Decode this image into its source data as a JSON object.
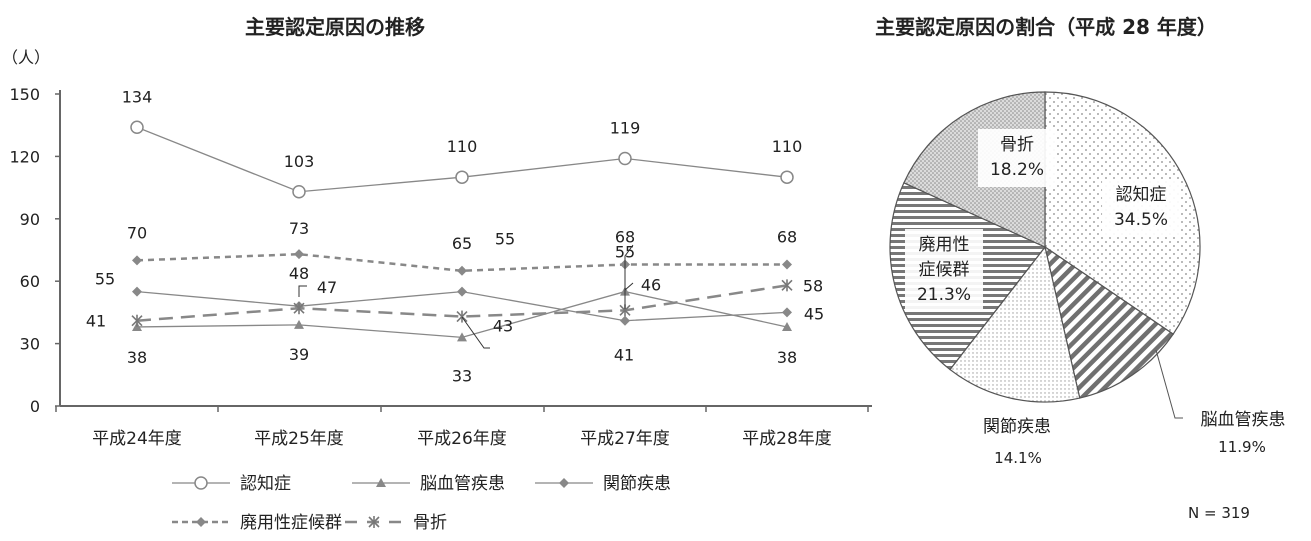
{
  "chart_data": [
    {
      "type": "line",
      "title": "主要認定原因の推移",
      "ylabel": "（人）",
      "ylim": [
        0,
        150
      ],
      "yticks": [
        0,
        30,
        60,
        90,
        120,
        150
      ],
      "categories": [
        "平成24年度",
        "平成25年度",
        "平成26年度",
        "平成27年度",
        "平成28年度"
      ],
      "grid": false,
      "legend": "bottom",
      "series": [
        {
          "name": "認知症",
          "values": [
            134,
            103,
            110,
            119,
            110
          ],
          "color": "#888888",
          "marker": "circle-open",
          "dash": "solid"
        },
        {
          "name": "脳血管疾患",
          "values": [
            38,
            39,
            33,
            55,
            38
          ],
          "color": "#888888",
          "marker": "triangle",
          "dash": "solid"
        },
        {
          "name": "関節疾患",
          "values": [
            55,
            48,
            55,
            41,
            45
          ],
          "color": "#888888",
          "marker": "diamond",
          "dash": "solid"
        },
        {
          "name": "廃用性症候群",
          "values": [
            70,
            73,
            65,
            68,
            68
          ],
          "color": "#888888",
          "marker": "diamond",
          "dash": "short-dash"
        },
        {
          "name": "骨折",
          "values": [
            41,
            47,
            43,
            46,
            58
          ],
          "color": "#888888",
          "marker": "asterisk",
          "dash": "long-dash"
        }
      ]
    },
    {
      "type": "pie",
      "title": "主要認定原因の割合（平成 28 年度）",
      "note": "N = 319",
      "slices": [
        {
          "name": "認知症",
          "value": 34.5,
          "label": "34.5%",
          "pattern": "dots"
        },
        {
          "name": "脳血管疾患",
          "value": 11.9,
          "label": "11.9%",
          "pattern": "diagonal"
        },
        {
          "name": "関節疾患",
          "value": 14.1,
          "label": "14.1%",
          "pattern": "fine-dots"
        },
        {
          "name": "廃用性症候群",
          "value": 21.3,
          "label": "21.3%",
          "pattern": "horizontal"
        },
        {
          "name": "骨折",
          "value": 18.2,
          "label": "18.2%",
          "pattern": "dense-dots"
        }
      ]
    }
  ]
}
